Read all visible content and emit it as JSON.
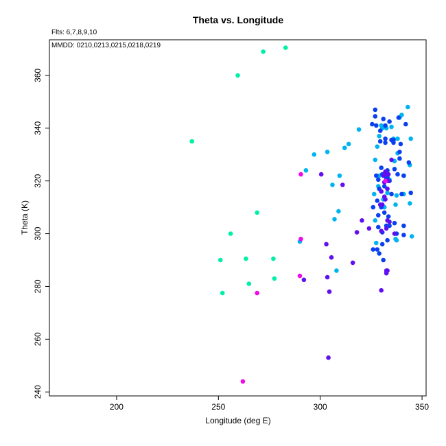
{
  "chart_data": {
    "type": "scatter",
    "title": "Theta vs. Longitude",
    "notes": [
      "Flts: 6,7,8,9,10",
      "MMDD: 0210,0213,0215,0218,0219"
    ],
    "xlabel": "Longitude (deg E)",
    "ylabel": "Theta (K)",
    "xlim": [
      167,
      352
    ],
    "ylim": [
      238.5,
      373.5
    ],
    "xticks": [
      200,
      250,
      300,
      350
    ],
    "yticks": [
      240,
      260,
      280,
      300,
      320,
      340,
      360
    ],
    "grid": false,
    "series": [
      {
        "color": "#00f0a8",
        "points": [
          [
            237,
            335
          ],
          [
            259.5,
            360
          ],
          [
            272,
            369
          ],
          [
            283,
            370.5
          ],
          [
            251,
            290
          ],
          [
            252,
            277.5
          ],
          [
            256,
            300
          ],
          [
            263.5,
            290.5
          ],
          [
            265,
            281
          ],
          [
            269,
            308
          ],
          [
            277,
            290.5
          ],
          [
            277.5,
            283
          ]
        ]
      },
      {
        "color": "#00b4f0",
        "points": [
          [
            290,
            297
          ],
          [
            293,
            324
          ],
          [
            297,
            330
          ],
          [
            303.5,
            331
          ],
          [
            306,
            318.5
          ],
          [
            307,
            305.5
          ],
          [
            308,
            286
          ],
          [
            309,
            308.5
          ],
          [
            309.5,
            322
          ],
          [
            312,
            332.5
          ],
          [
            314,
            334
          ],
          [
            319,
            339.5
          ],
          [
            326.5,
            315
          ],
          [
            327,
            328
          ],
          [
            327,
            305
          ],
          [
            327.5,
            296.5
          ],
          [
            328,
            333
          ],
          [
            328.5,
            318
          ],
          [
            329,
            322
          ],
          [
            329,
            337
          ],
          [
            330,
            341
          ],
          [
            330.5,
            340
          ],
          [
            331,
            313
          ],
          [
            331.5,
            310
          ],
          [
            332.5,
            340
          ],
          [
            333,
            315.5
          ],
          [
            334,
            320.5
          ],
          [
            335,
            340.5
          ],
          [
            336,
            336
          ],
          [
            336.5,
            327.5
          ],
          [
            337,
            311
          ],
          [
            337,
            298
          ],
          [
            337.5,
            297.5
          ],
          [
            337.5,
            314.5
          ],
          [
            338,
            330.5
          ],
          [
            338,
            336
          ],
          [
            339,
            344
          ],
          [
            340,
            345
          ],
          [
            341,
            322
          ],
          [
            341,
            315
          ],
          [
            343,
            348
          ],
          [
            344,
            326
          ],
          [
            344,
            311.5
          ],
          [
            344.5,
            336
          ],
          [
            345,
            299
          ]
        ]
      },
      {
        "color": "#0a40f0",
        "points": [
          [
            325.5,
            341.5
          ],
          [
            326,
            310
          ],
          [
            326,
            294
          ],
          [
            327,
            347
          ],
          [
            327,
            344.5
          ],
          [
            327.5,
            341
          ],
          [
            327.5,
            322
          ],
          [
            328,
            312.5
          ],
          [
            328,
            294
          ],
          [
            328.5,
            307
          ],
          [
            328.5,
            302.5
          ],
          [
            328.5,
            320.5
          ],
          [
            329,
            317
          ],
          [
            329,
            292.5
          ],
          [
            329.5,
            339
          ],
          [
            329.5,
            335
          ],
          [
            330,
            325
          ],
          [
            330,
            310
          ],
          [
            330.5,
            300.5
          ],
          [
            330.5,
            296
          ],
          [
            330.5,
            322.5
          ],
          [
            331,
            343.5
          ],
          [
            331,
            290
          ],
          [
            331.5,
            318
          ],
          [
            331.5,
            308
          ],
          [
            332,
            341
          ],
          [
            332,
            336
          ],
          [
            332,
            334.5
          ],
          [
            332.5,
            321
          ],
          [
            332.5,
            303
          ],
          [
            333,
            324
          ],
          [
            333,
            321.5
          ],
          [
            333,
            297.5
          ],
          [
            333.5,
            306.5
          ],
          [
            334,
            342.5
          ],
          [
            334,
            303
          ],
          [
            334,
            320
          ],
          [
            335,
            335.5
          ],
          [
            335,
            315
          ],
          [
            336,
            335.5
          ],
          [
            336,
            334.5
          ],
          [
            336.5,
            304
          ],
          [
            336.5,
            324.5
          ],
          [
            337.5,
            300
          ],
          [
            338,
            322.5
          ],
          [
            338.5,
            344
          ],
          [
            339,
            331
          ],
          [
            339,
            328.5
          ],
          [
            339.5,
            334
          ],
          [
            340,
            315
          ],
          [
            341,
            303
          ],
          [
            341,
            299.5
          ],
          [
            341,
            322
          ],
          [
            342,
            341.5
          ],
          [
            343.5,
            327
          ],
          [
            344.5,
            315.5
          ]
        ]
      },
      {
        "color": "#6010f0",
        "points": [
          [
            292,
            282.5
          ],
          [
            300.5,
            322.5
          ],
          [
            303,
            296
          ],
          [
            303.5,
            283.5
          ],
          [
            304,
            253
          ],
          [
            304.5,
            278
          ],
          [
            305.5,
            291
          ],
          [
            311,
            318.5
          ],
          [
            316,
            289
          ],
          [
            318,
            300.5
          ],
          [
            320.5,
            305
          ],
          [
            324,
            302
          ],
          [
            329.5,
            311
          ],
          [
            330,
            316
          ],
          [
            330,
            278.5
          ],
          [
            330,
            301
          ],
          [
            330.5,
            311
          ],
          [
            331,
            322
          ],
          [
            331.5,
            314
          ],
          [
            331.5,
            319.5
          ],
          [
            332,
            322.5
          ],
          [
            332,
            323.5
          ],
          [
            332,
            313
          ],
          [
            332.5,
            286
          ],
          [
            332.5,
            285
          ],
          [
            332.5,
            302
          ],
          [
            333,
            305
          ],
          [
            333,
            286
          ],
          [
            333,
            317
          ],
          [
            333.5,
            322.5
          ],
          [
            333.5,
            320
          ],
          [
            334,
            304.5
          ],
          [
            335,
            328
          ],
          [
            336.5,
            300
          ]
        ]
      },
      {
        "color": "#f00ae8",
        "points": [
          [
            262,
            244
          ],
          [
            269,
            277.5
          ],
          [
            290.5,
            322.5
          ],
          [
            290,
            284
          ],
          [
            290.5,
            298
          ],
          [
            332,
            320
          ]
        ]
      }
    ]
  }
}
